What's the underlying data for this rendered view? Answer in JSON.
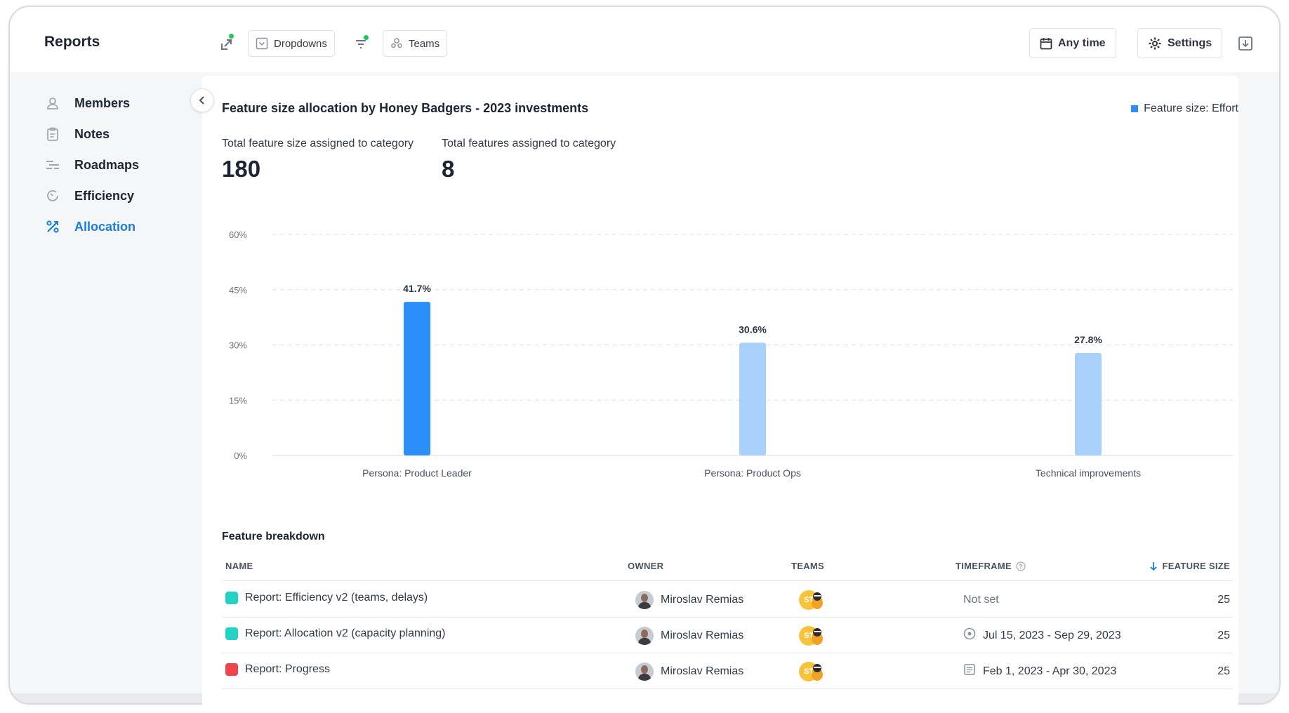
{
  "app": {
    "title": "Reports"
  },
  "toolbar": {
    "dropdowns_label": "Dropdowns",
    "teams_label": "Teams",
    "time_label": "Any time",
    "settings_label": "Settings"
  },
  "sidebar": {
    "items": [
      {
        "label": "Members",
        "icon": "user-icon"
      },
      {
        "label": "Notes",
        "icon": "clipboard-icon"
      },
      {
        "label": "Roadmaps",
        "icon": "roadmap-icon"
      },
      {
        "label": "Efficiency",
        "icon": "gauge-icon"
      },
      {
        "label": "Allocation",
        "icon": "percent-icon",
        "active": true
      }
    ]
  },
  "report": {
    "title": "Feature size allocation by Honey Badgers - 2023 investments",
    "legend_label": "Feature size: Effort",
    "stats": [
      {
        "label": "Total feature size assigned to category",
        "value": "180"
      },
      {
        "label": "Total features assigned to category",
        "value": "8"
      }
    ]
  },
  "chart_data": {
    "type": "bar",
    "categories": [
      "Persona: Product Leader",
      "Persona: Product Ops",
      "Technical improvements"
    ],
    "values": [
      41.7,
      30.6,
      27.8
    ],
    "value_labels": [
      "41.7%",
      "30.6%",
      "27.8%"
    ],
    "ylim": [
      0,
      60
    ],
    "yticks": [
      0,
      15,
      30,
      45,
      60
    ],
    "ytick_labels": [
      "0%",
      "15%",
      "30%",
      "45%",
      "60%"
    ],
    "grid": true,
    "colors": [
      "#2c8ef8",
      "#a9d0fb",
      "#a9d0fb"
    ],
    "legend": "top-right"
  },
  "table": {
    "title": "Feature breakdown",
    "columns": {
      "name": "NAME",
      "owner": "OWNER",
      "teams": "TEAMS",
      "timeframe": "TIMEFRAME",
      "size": "FEATURE SIZE"
    },
    "rows": [
      {
        "name": "Report: Efficiency v2 (teams, delays)",
        "color": "#22d3c5",
        "owner": "Miroslav Remias",
        "team": "ST",
        "timeframe": "Not set",
        "timeframe_icon": "",
        "size": "25"
      },
      {
        "name": "Report: Allocation v2 (capacity planning)",
        "color": "#22d3c5",
        "owner": "Miroslav Remias",
        "team": "ST",
        "timeframe": "Jul 15, 2023 - Sep 29, 2023",
        "timeframe_icon": "circle-clock-icon",
        "size": "25"
      },
      {
        "name": "Report: Progress",
        "color": "#f2434a",
        "owner": "Miroslav Remias",
        "team": "ST",
        "timeframe": "Feb 1, 2023 - Apr 30, 2023",
        "timeframe_icon": "document-icon",
        "size": "25"
      }
    ]
  }
}
